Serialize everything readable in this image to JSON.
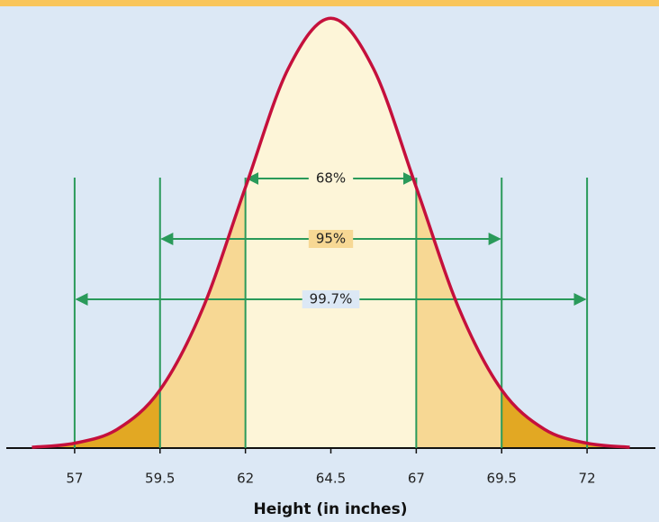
{
  "chart_data": {
    "type": "normal-curve",
    "x": [
      55.75,
      57,
      58.25,
      59.5,
      60.75,
      62,
      63.25,
      64.5,
      65.75,
      67,
      68.25,
      69.5,
      70.75,
      72,
      73.25
    ],
    "values": [
      0.0003,
      0.0018,
      0.007,
      0.0216,
      0.0518,
      0.0968,
      0.1408,
      0.1596,
      0.1408,
      0.0968,
      0.0518,
      0.0216,
      0.007,
      0.0018,
      0.0003
    ],
    "color": "#c5103c",
    "tail_color": "#e2a823",
    "xlim": [
      55,
      74
    ],
    "ylim": [
      0,
      0.16
    ],
    "xticks": [
      57,
      59.5,
      62,
      64.5,
      67,
      69.5,
      72
    ],
    "xlabel": "Height (in inches)",
    "interval_color": "#2a9a5a",
    "intervals": [
      {
        "label": "68%",
        "range": [
          62,
          67
        ],
        "color": "#fdf5d8"
      },
      {
        "label": "95%",
        "range": [
          59.5,
          69.5
        ],
        "color": "#f7d894"
      },
      {
        "label": "99.7%",
        "range": [
          57,
          72
        ]
      }
    ]
  }
}
